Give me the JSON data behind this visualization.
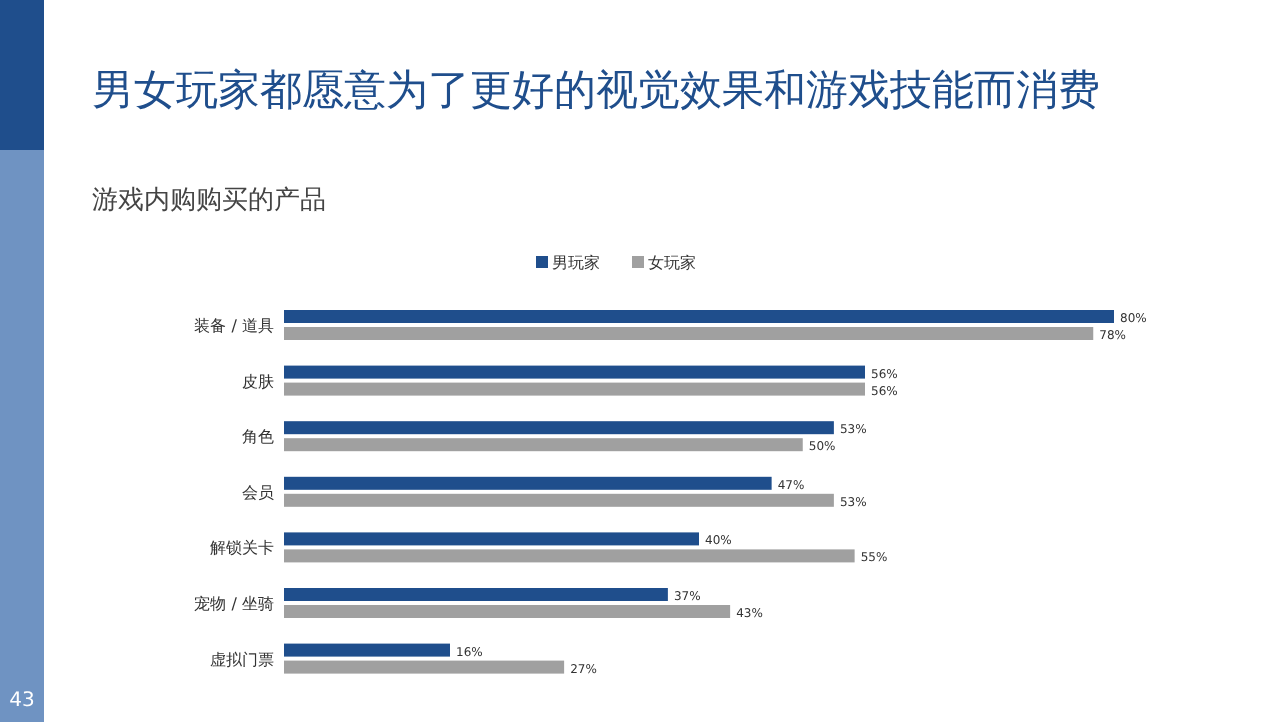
{
  "chart_data": {
    "type": "bar",
    "orientation": "horizontal",
    "title": "男女玩家都愿意为了更好的视觉效果和游戏技能而消费",
    "subtitle": "游戏内购购买的产品",
    "categories": [
      "装备 / 道具",
      "皮肤",
      "角色",
      "会员",
      "解锁关卡",
      "宠物 / 坐骑",
      "虚拟门票"
    ],
    "series": [
      {
        "name": "男玩家",
        "color": "#1f4e8c",
        "values": [
          80,
          56,
          53,
          47,
          40,
          37,
          16
        ],
        "value_labels": [
          "80%",
          "56%",
          "53%",
          "47%",
          "40%",
          "37%",
          "16%"
        ]
      },
      {
        "name": "女玩家",
        "color": "#a0a0a0",
        "values": [
          78,
          56,
          50,
          53,
          55,
          43,
          27
        ],
        "value_labels": [
          "78%",
          "56%",
          "50%",
          "53%",
          "55%",
          "43%",
          "27%"
        ]
      }
    ],
    "tick_labels": "y",
    "legend": "top",
    "annotations": [
      "43"
    ]
  }
}
